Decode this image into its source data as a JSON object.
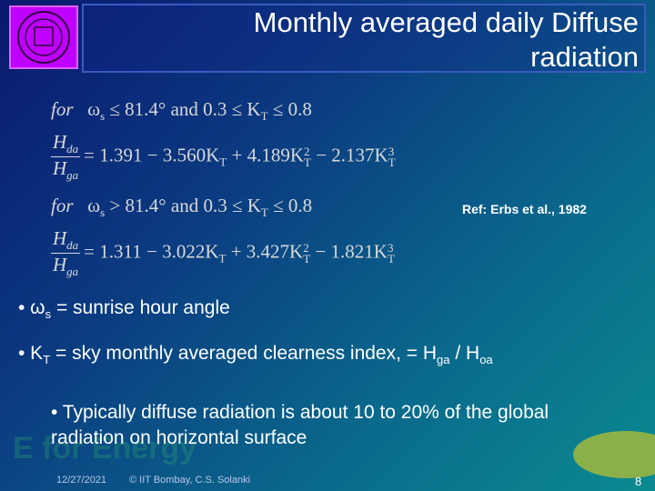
{
  "header": {
    "title": [
      "Monthly averaged daily Diffuse",
      "radiation"
    ]
  },
  "equations": [
    {
      "condition": [
        "for",
        "ω",
        "s",
        "≤ 81.4° and 0.3 ≤ K",
        "T",
        "≤ 0.8"
      ],
      "numerator": [
        "H",
        "da"
      ],
      "denominator": [
        "H",
        "ga"
      ],
      "rhs": [
        "= 1.391 − 3.560K",
        "T",
        "+ 4.189K",
        "T",
        "2",
        "− 2.137K",
        "T",
        "3"
      ]
    },
    {
      "condition": [
        "for",
        "ω",
        "s",
        "> 81.4° and 0.3 ≤ K",
        "T",
        "≤ 0.8"
      ],
      "numerator": [
        "H",
        "da"
      ],
      "denominator": [
        "H",
        "ga"
      ],
      "rhs": [
        "= 1.311 − 3.022K",
        "T",
        "+ 3.427K",
        "T",
        "2",
        "− 1.821K",
        "T",
        "3"
      ]
    }
  ],
  "reference": "Ref: Erbs et al., 1982",
  "bullets": [
    [
      "• ω",
      "s",
      "=  sunrise hour angle"
    ],
    [
      "• K",
      "T",
      "= sky monthly averaged clearness index, = H",
      "ga",
      "/ H",
      "oa"
    ]
  ],
  "note": "• Typically diffuse radiation is about 10 to 20% of the global radiation on horizontal surface",
  "watermark": "E for Energy",
  "footer": {
    "date": "12/27/2021",
    "copyright": "© IIT Bombay, C.S. Solanki",
    "page": "8"
  }
}
